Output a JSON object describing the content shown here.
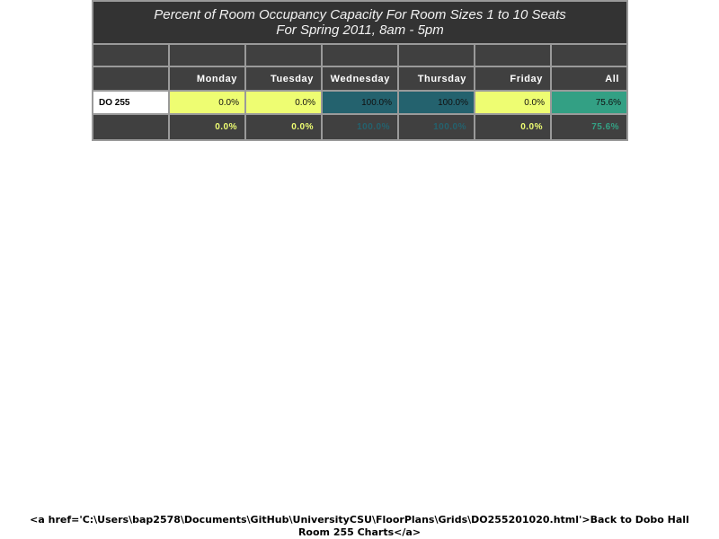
{
  "title": {
    "line1": "Percent of Room Occupancy Capacity For Room Sizes 1 to 10 Seats",
    "line2": "For Spring 2011, 8am - 5pm"
  },
  "headers": [
    "Monday",
    "Tuesday",
    "Wednesday",
    "Thursday",
    "Friday",
    "All"
  ],
  "rows": [
    {
      "room": "DO 255",
      "values": [
        "0.0%",
        "0.0%",
        "100.0%",
        "100.0%",
        "0.0%",
        "75.6%"
      ]
    }
  ],
  "totals": [
    "0.0%",
    "0.0%",
    "100.0%",
    "100.0%",
    "0.0%",
    "75.6%"
  ],
  "colors": {
    "low": "#eefd72",
    "high": "#24626e",
    "mid": "#33a084",
    "header_bg": "#404040",
    "title_bg": "#333333"
  },
  "footer": {
    "line1": "<a href='C:\\Users\\bap2578\\Documents\\GitHub\\UniversityCSU\\FloorPlans\\Grids\\DO255201020.html'>Back to Dobo Hall",
    "line2": "Room 255 Charts</a>"
  }
}
